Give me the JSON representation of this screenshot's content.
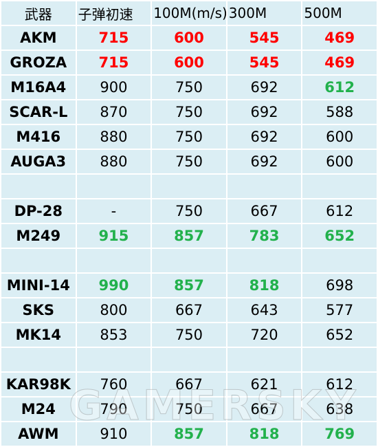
{
  "table": {
    "header": [
      "武器",
      "子弹初速",
      "100M(m/s)",
      "300M",
      "500M"
    ],
    "rows": [
      [
        "AKM",
        715,
        600,
        545,
        469
      ],
      [
        "GROZA",
        715,
        600,
        545,
        469
      ],
      [
        "M16A4",
        900,
        750,
        692,
        612
      ],
      [
        "SCAR-L",
        870,
        750,
        692,
        588
      ],
      [
        "M416",
        880,
        750,
        692,
        600
      ],
      [
        "AUGA3",
        880,
        750,
        692,
        600
      ],
      [],
      [
        "DP-28",
        "-",
        750,
        667,
        612
      ],
      [
        "M249",
        915,
        857,
        783,
        652
      ],
      [],
      [
        "MINI-14",
        990,
        857,
        818,
        698
      ],
      [
        "SKS",
        800,
        667,
        643,
        577
      ],
      [
        "MK14",
        853,
        750,
        720,
        652
      ],
      [],
      [
        "KAR98K",
        760,
        667,
        621,
        612
      ],
      [
        "M24",
        790,
        750,
        667,
        638
      ],
      [
        "AWM",
        910,
        857,
        818,
        769
      ]
    ],
    "highlight": [
      [
        "red",
        "red",
        "red",
        "red"
      ],
      [
        "red",
        "red",
        "red",
        "red"
      ],
      [
        null,
        null,
        null,
        "green"
      ],
      [
        null,
        null,
        null,
        null
      ],
      [
        null,
        null,
        null,
        null
      ],
      [
        null,
        null,
        null,
        null
      ],
      [],
      [
        null,
        null,
        null,
        null
      ],
      [
        "green",
        "green",
        "green",
        "green"
      ],
      [],
      [
        "green",
        "green",
        "green",
        null
      ],
      [
        null,
        null,
        null,
        null
      ],
      [
        null,
        null,
        null,
        null
      ],
      [],
      [
        null,
        null,
        null,
        null
      ],
      [
        null,
        null,
        null,
        null
      ],
      [
        null,
        "green",
        "green",
        "green"
      ]
    ]
  },
  "watermark": "GAMERSKY"
}
